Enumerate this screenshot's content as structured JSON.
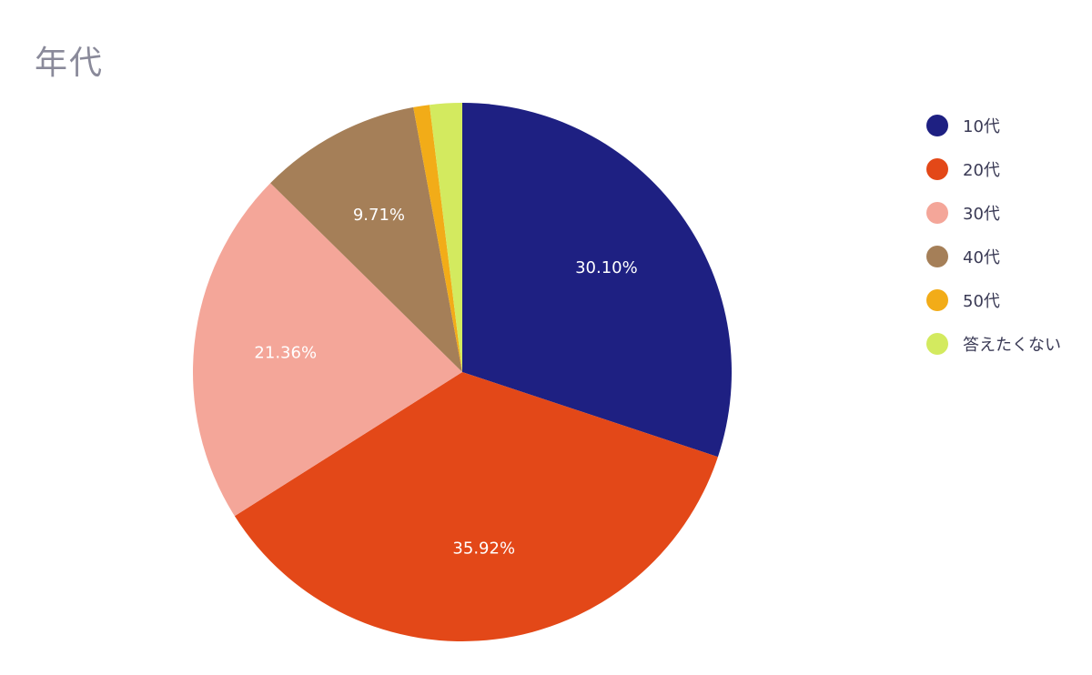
{
  "chart_data": {
    "type": "pie",
    "title": "年代",
    "categories": [
      "10代",
      "20代",
      "30代",
      "40代",
      "50代",
      "答えたくない"
    ],
    "values": [
      30.1,
      35.92,
      21.36,
      9.71,
      0.97,
      1.94
    ],
    "data_labels": [
      "30.10%",
      "35.92%",
      "21.36%",
      "9.71%",
      "",
      ""
    ],
    "colors": [
      "#1e2082",
      "#e34818",
      "#f4a699",
      "#a57f58",
      "#f2ac18",
      "#d3ea5f"
    ],
    "legend_position": "right",
    "start_angle": "12 o'clock",
    "direction": "clockwise"
  }
}
